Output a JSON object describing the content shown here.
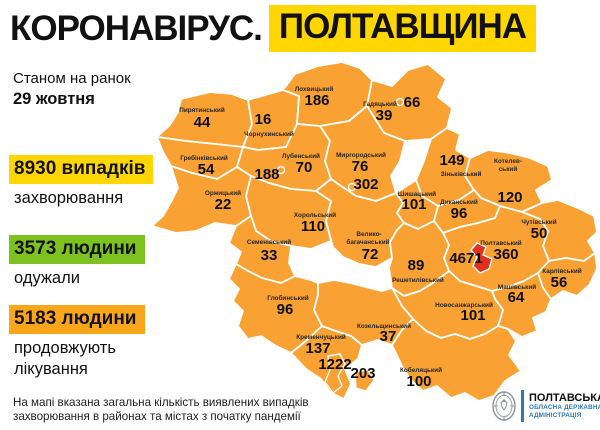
{
  "title": {
    "prefix": "КОРОНАВІРУС.",
    "highlight": "ПОЛТАВЩИНА"
  },
  "asof": {
    "line1": "Станом на ранок",
    "line2": "29 жовтня"
  },
  "stats": [
    {
      "id": "cases",
      "value": "8930 випадків",
      "caption": "захворювання"
    },
    {
      "id": "recovered",
      "value": "3573 людини",
      "caption": "одужали"
    },
    {
      "id": "treatment",
      "value": "5183 людини",
      "caption": "продовжують лікування"
    }
  ],
  "note": "На мапі вказана загальна кількість виявлених випадків захворювання в районах та містах з початку пандемії",
  "logo": {
    "title": "ПОЛТАВСЬКА",
    "subtitle1": "ОБЛАСНА ДЕРЖАВНА",
    "subtitle2": "АДМІНІСТРАЦІЯ"
  },
  "colors": {
    "accent_yellow": "#ffd600",
    "accent_green": "#7dc21e",
    "accent_orange": "#f9a61b",
    "map_fill": "#f9a233",
    "city_red": "#e1301e",
    "logo_blue": "#2a7ab5"
  },
  "map": {
    "districts": [
      {
        "id": "pyriatynskyi",
        "name": "Пирятинський",
        "value": "44"
      },
      {
        "id": "chornukhynskyi",
        "name": "Чорнухинський",
        "value": "16"
      },
      {
        "id": "lokhvytskyi",
        "name": "Лохвицький",
        "value": "186"
      },
      {
        "id": "hadiatskyi",
        "name": "Гадяцький",
        "value": "39"
      },
      {
        "id": "zinkivskyi",
        "name": "Зіньківський",
        "value": "149"
      },
      {
        "id": "kotelevskyi",
        "name": "Котелев-ський",
        "value": "120"
      },
      {
        "id": "hrebinkivskyi",
        "name": "Гребінківський",
        "value": "54"
      },
      {
        "id": "lubenskyi",
        "name": "Лубенський",
        "value": "70"
      },
      {
        "id": "myrhorodskyi",
        "name": "Миргородський",
        "value": "76"
      },
      {
        "id": "orzhytskyi",
        "name": "Оржицький",
        "value": "22"
      },
      {
        "id": "khorolskyi",
        "name": "Хорольський",
        "value": "110"
      },
      {
        "id": "semenivskyi",
        "name": "Семенівський",
        "value": "33"
      },
      {
        "id": "velykobahachanskyi",
        "name": "Велико-багачанський",
        "value": "72"
      },
      {
        "id": "shyshatskyi",
        "name": "Шишацький",
        "value": "101"
      },
      {
        "id": "dykanskyi",
        "name": "Диканський",
        "value": "96"
      },
      {
        "id": "chutivskyi",
        "name": "Чутівський",
        "value": "50"
      },
      {
        "id": "poltavskyi",
        "name": "Полтавський",
        "value": "360"
      },
      {
        "id": "reshetylivskyi",
        "name": "Решетилівський",
        "value": "89"
      },
      {
        "id": "karlivskyi",
        "name": "Карлівський",
        "value": "56"
      },
      {
        "id": "mashivskyi",
        "name": "Машівський",
        "value": "64"
      },
      {
        "id": "novosanzharskyi",
        "name": "Новосанжарський",
        "value": "101"
      },
      {
        "id": "hlobynskyi",
        "name": "Глобинський",
        "value": "96"
      },
      {
        "id": "kremenchutskyi",
        "name": "Кременчуцький",
        "value": "137"
      },
      {
        "id": "kozelshchynskyi",
        "name": "Козельщинський",
        "value": "37"
      },
      {
        "id": "kobeliatskyi",
        "name": "Кобеляцький",
        "value": "100"
      }
    ],
    "cities": [
      {
        "id": "hadiach",
        "value": "66"
      },
      {
        "id": "lubny",
        "value": "188"
      },
      {
        "id": "myrhorod",
        "value": "302"
      },
      {
        "id": "poltava",
        "value": "4671"
      },
      {
        "id": "kremenchuk",
        "value": "1222"
      },
      {
        "id": "horishni-plavni",
        "value": "203"
      }
    ]
  }
}
